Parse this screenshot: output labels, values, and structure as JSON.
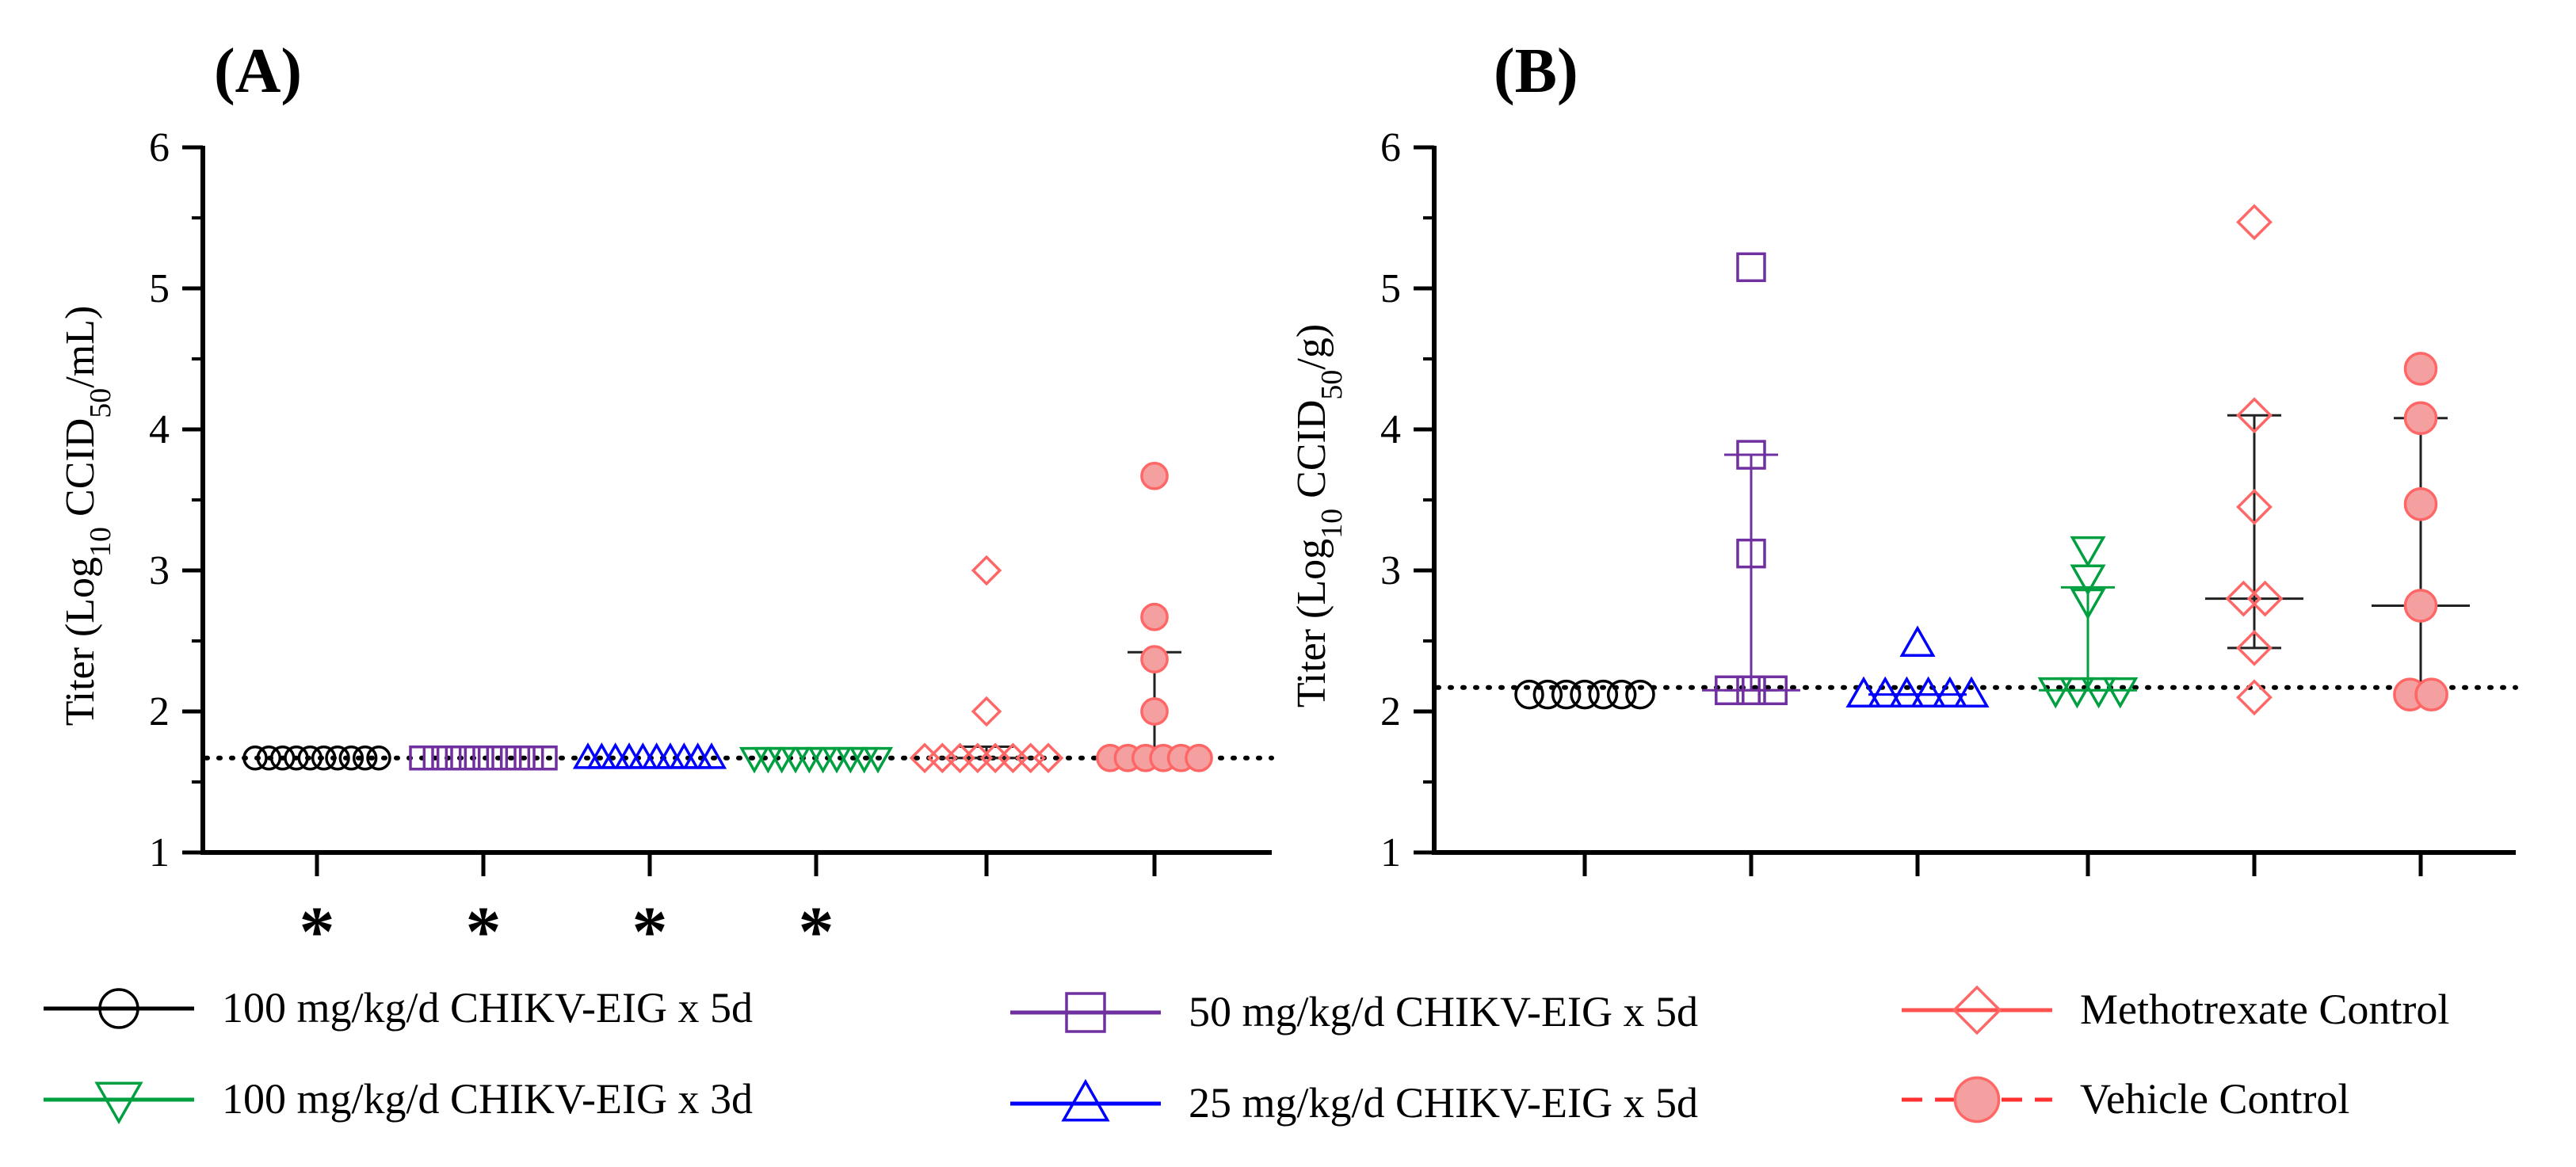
{
  "chart_data": [
    {
      "type": "scatter",
      "panel_label": "(A)",
      "ylabel_prefix": "Titer  (Log",
      "ylabel_sub": "10",
      "ylabel_middle": "  CCID",
      "ylabel_sub2": "50",
      "ylabel_suffix": "/mL)",
      "ylim": [
        1,
        6
      ],
      "yticks": [
        "1",
        "2",
        "3",
        "4",
        "5",
        "6"
      ],
      "limit_of_detection": 1.67,
      "significance_marker": "*",
      "groups": [
        {
          "series": "100 mg/kg/d CHIKV-EIG x 5d",
          "points": [
            1.67,
            1.67,
            1.67,
            1.67,
            1.67,
            1.67,
            1.67,
            1.67,
            1.67,
            1.67
          ],
          "median": null,
          "iqr": null,
          "significant": true
        },
        {
          "series": "50 mg/kg/d CHIKV-EIG x 5d",
          "points": [
            1.67,
            1.67,
            1.67,
            1.67,
            1.67,
            1.67,
            1.67,
            1.67,
            1.67,
            1.67
          ],
          "median": null,
          "iqr": null,
          "significant": true
        },
        {
          "series": "25 mg/kg/d CHIKV-EIG x 5d",
          "points": [
            1.67,
            1.67,
            1.67,
            1.67,
            1.67,
            1.67,
            1.67,
            1.67,
            1.67,
            1.67
          ],
          "median": null,
          "iqr": null,
          "significant": true
        },
        {
          "series": "100 mg/kg/d CHIKV-EIG x 3d",
          "points": [
            1.67,
            1.67,
            1.67,
            1.67,
            1.67,
            1.67,
            1.67,
            1.67,
            1.67,
            1.67
          ],
          "median": null,
          "iqr": null,
          "significant": true
        },
        {
          "series": "Methotrexate Control",
          "points": [
            3.0,
            2.0,
            1.67,
            1.67,
            1.67,
            1.67,
            1.67,
            1.67,
            1.67,
            1.67
          ],
          "median": 1.67,
          "iqr": [
            1.67,
            1.75
          ],
          "significant": false
        },
        {
          "series": "Vehicle Control",
          "points": [
            3.67,
            2.67,
            2.37,
            2.0,
            1.67,
            1.67,
            1.67,
            1.67,
            1.67,
            1.67
          ],
          "median": 1.67,
          "iqr": [
            1.67,
            2.42
          ],
          "significant": false
        }
      ]
    },
    {
      "type": "scatter",
      "panel_label": "(B)",
      "ylabel_prefix": "Titer  (Log",
      "ylabel_sub": "10",
      "ylabel_middle": "  CCID",
      "ylabel_sub2": "50",
      "ylabel_suffix": "/g)",
      "ylim": [
        1,
        6
      ],
      "yticks": [
        "1",
        "2",
        "3",
        "4",
        "5",
        "6"
      ],
      "limit_of_detection": 2.17,
      "groups": [
        {
          "series": "100 mg/kg/d CHIKV-EIG x 5d",
          "points": [
            2.12,
            2.12,
            2.12,
            2.12,
            2.12,
            2.12,
            2.12
          ],
          "median": null,
          "iqr": null
        },
        {
          "series": "50 mg/kg/d CHIKV-EIG x 5d",
          "points": [
            5.15,
            3.82,
            3.12,
            2.15,
            2.15,
            2.15
          ],
          "median": 2.15,
          "iqr": [
            2.15,
            3.82
          ]
        },
        {
          "series": "25 mg/kg/d CHIKV-EIG x 5d",
          "points": [
            2.48,
            2.12,
            2.12,
            2.12,
            2.12,
            2.12,
            2.12
          ],
          "median": 2.12,
          "iqr": [
            2.12,
            2.12
          ]
        },
        {
          "series": "100 mg/kg/d CHIKV-EIG x 3d",
          "points": [
            3.15,
            2.95,
            2.78,
            2.15,
            2.15,
            2.15,
            2.15
          ],
          "median": 2.15,
          "iqr": [
            2.15,
            2.88
          ]
        },
        {
          "series": "Methotrexate Control",
          "points": [
            5.47,
            4.1,
            3.45,
            2.8,
            2.8,
            2.45,
            2.1
          ],
          "median": 2.8,
          "iqr": [
            2.45,
            4.1
          ]
        },
        {
          "series": "Vehicle Control",
          "points": [
            4.43,
            4.08,
            3.47,
            2.75,
            2.12,
            2.12
          ],
          "median": 2.75,
          "iqr": [
            2.12,
            4.08
          ]
        }
      ]
    }
  ],
  "legend": [
    {
      "label": "100 mg/kg/d CHIKV-EIG x 5d",
      "marker": "circle-open",
      "color": "#000000",
      "line": "solid"
    },
    {
      "label": "50 mg/kg/d CHIKV-EIG x 5d",
      "marker": "square-open",
      "color": "#7030A0",
      "line": "solid"
    },
    {
      "label": "Methotrexate Control",
      "marker": "diamond-open",
      "color": "#FF5050",
      "line": "solid"
    },
    {
      "label": "100 mg/kg/d CHIKV-EIG x 3d",
      "marker": "triangle-down-open",
      "color": "#00A040",
      "line": "solid"
    },
    {
      "label": "25 mg/kg/d CHIKV-EIG x 5d",
      "marker": "triangle-up-open",
      "color": "#0000FF",
      "line": "solid"
    },
    {
      "label": "Vehicle Control",
      "marker": "circle-filled",
      "color": "#FF3030",
      "line": "dashed"
    }
  ],
  "colors": {
    "circle-open": "#000000",
    "square-open": "#7030A0",
    "triangle-up-open": "#0000FF",
    "triangle-down-open": "#00A040",
    "diamond-open": "#FF6666",
    "circle-filled": "#FF6666",
    "circle-filled-fill": "#F4A0A0"
  }
}
